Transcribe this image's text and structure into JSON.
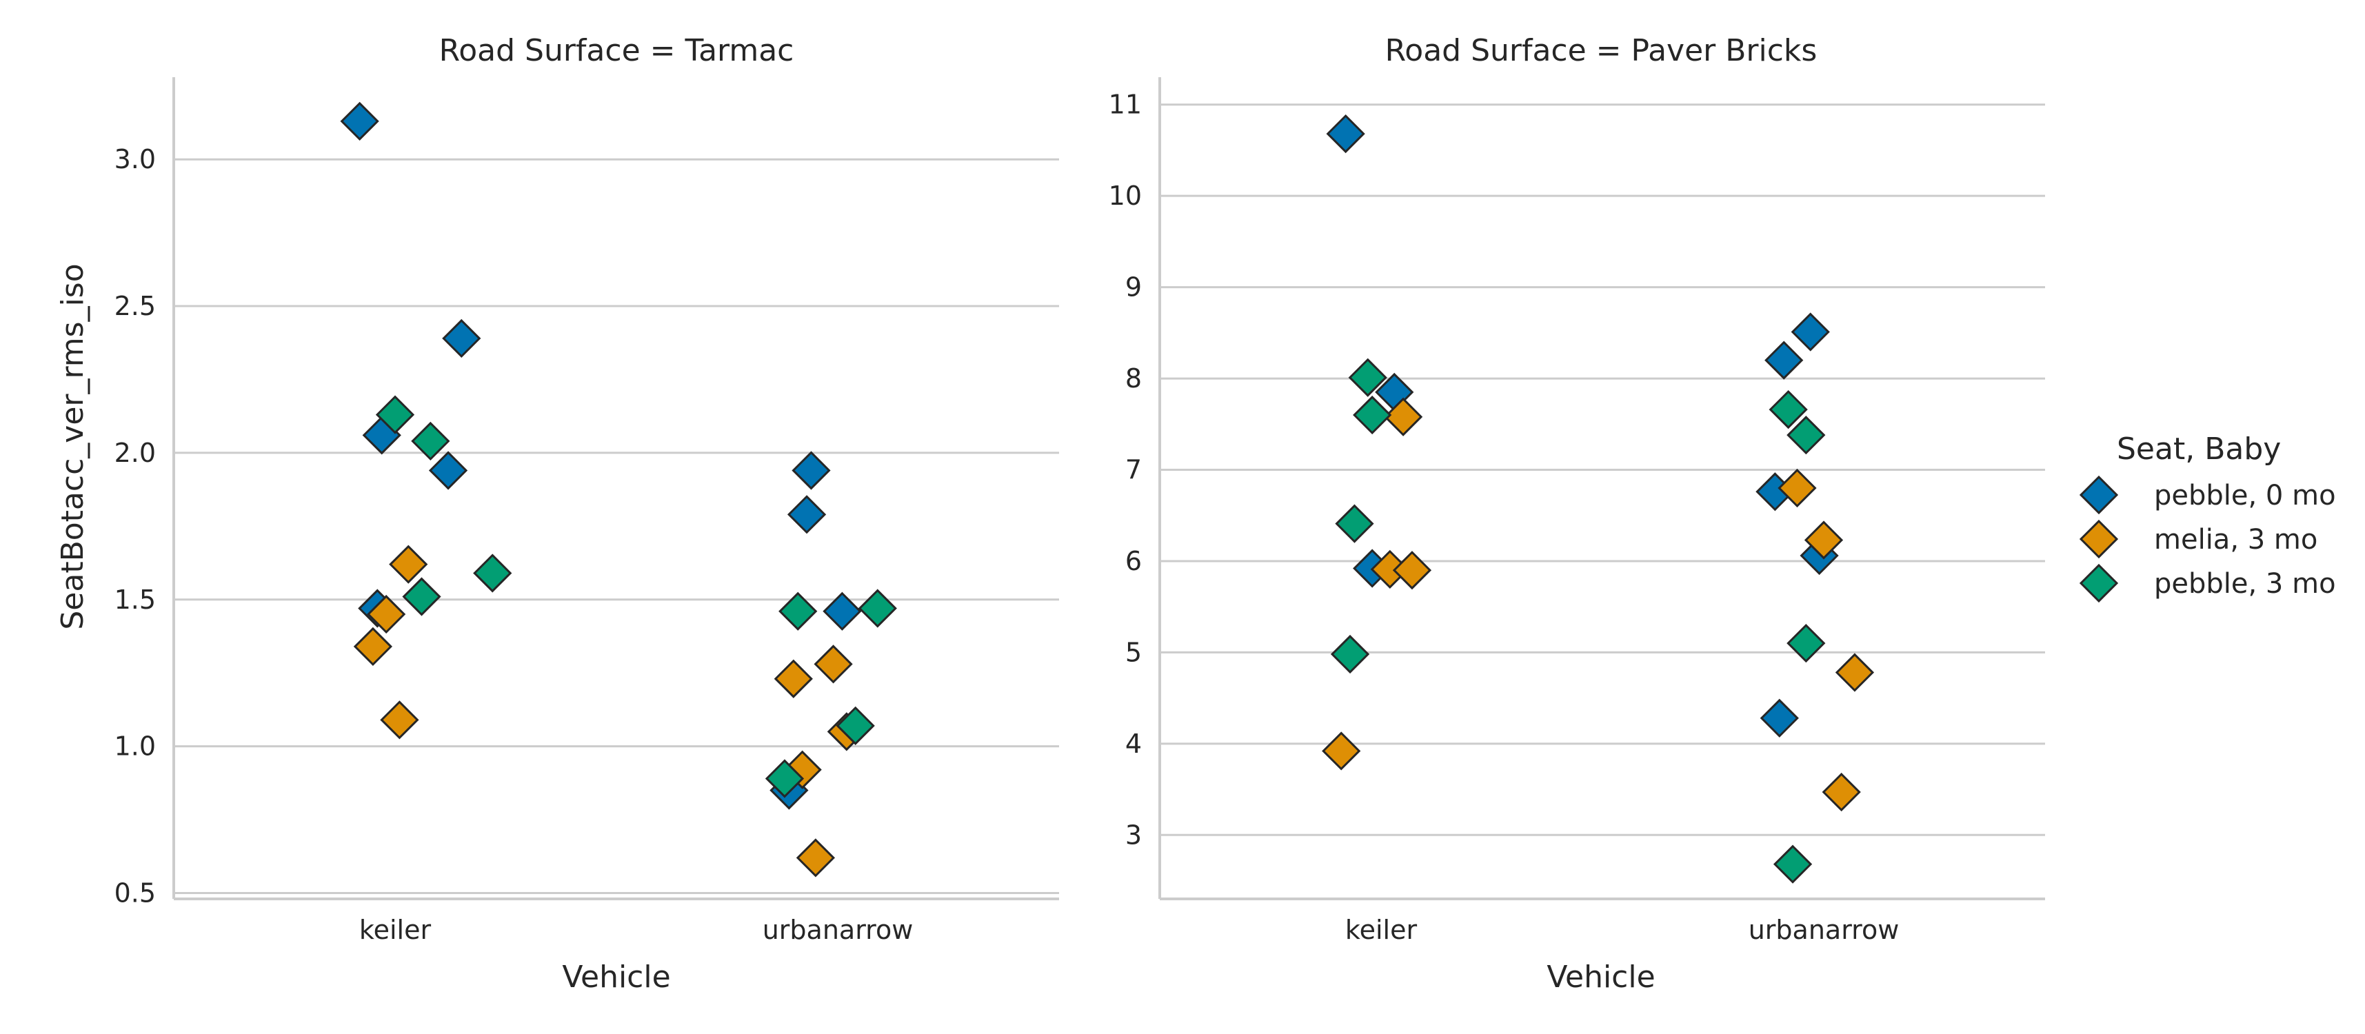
{
  "chart_data": [
    {
      "type": "scatter",
      "title": "Road Surface = Tarmac",
      "xlabel": "Vehicle",
      "ylabel": "SeatBotacc_ver_rms_iso",
      "categories": [
        "keiler",
        "urbanarrow"
      ],
      "ylim": [
        0.48,
        3.28
      ],
      "yticks": [
        "0.5",
        "1.0",
        "1.5",
        "2.0",
        "2.5",
        "3.0"
      ],
      "grid": true,
      "series": [
        {
          "name": "pebble, 0 mo",
          "color": "#0173b2",
          "points": [
            {
              "category": "keiler",
              "jitter": 0.92,
              "y": 3.13
            },
            {
              "category": "keiler",
              "jitter": 1.15,
              "y": 2.39
            },
            {
              "category": "keiler",
              "jitter": 0.97,
              "y": 2.06
            },
            {
              "category": "keiler",
              "jitter": 1.12,
              "y": 1.94
            },
            {
              "category": "keiler",
              "jitter": 0.96,
              "y": 1.47
            },
            {
              "category": "urbanarrow",
              "jitter": 1.94,
              "y": 1.94
            },
            {
              "category": "urbanarrow",
              "jitter": 1.93,
              "y": 1.79
            },
            {
              "category": "urbanarrow",
              "jitter": 2.01,
              "y": 1.46
            },
            {
              "category": "urbanarrow",
              "jitter": 1.89,
              "y": 0.85
            }
          ]
        },
        {
          "name": "melia, 3 mo",
          "color": "#de8f05",
          "points": [
            {
              "category": "keiler",
              "jitter": 1.03,
              "y": 1.62
            },
            {
              "category": "keiler",
              "jitter": 0.98,
              "y": 1.45
            },
            {
              "category": "keiler",
              "jitter": 0.95,
              "y": 1.34
            },
            {
              "category": "keiler",
              "jitter": 1.01,
              "y": 1.09
            },
            {
              "category": "urbanarrow",
              "jitter": 1.99,
              "y": 1.28
            },
            {
              "category": "urbanarrow",
              "jitter": 1.9,
              "y": 1.23
            },
            {
              "category": "urbanarrow",
              "jitter": 2.02,
              "y": 1.05
            },
            {
              "category": "urbanarrow",
              "jitter": 1.92,
              "y": 0.92
            },
            {
              "category": "urbanarrow",
              "jitter": 1.95,
              "y": 0.62
            }
          ]
        },
        {
          "name": "pebble, 3 mo",
          "color": "#029e73",
          "points": [
            {
              "category": "keiler",
              "jitter": 1.0,
              "y": 2.13
            },
            {
              "category": "keiler",
              "jitter": 1.08,
              "y": 2.04
            },
            {
              "category": "keiler",
              "jitter": 1.22,
              "y": 1.59
            },
            {
              "category": "keiler",
              "jitter": 1.06,
              "y": 1.51
            },
            {
              "category": "urbanarrow",
              "jitter": 1.91,
              "y": 1.46
            },
            {
              "category": "urbanarrow",
              "jitter": 2.09,
              "y": 1.47
            },
            {
              "category": "urbanarrow",
              "jitter": 2.04,
              "y": 1.07
            },
            {
              "category": "urbanarrow",
              "jitter": 1.88,
              "y": 0.89
            }
          ]
        }
      ]
    },
    {
      "type": "scatter",
      "title": "Road Surface = Paver Bricks",
      "xlabel": "Vehicle",
      "ylabel": "",
      "categories": [
        "keiler",
        "urbanarrow"
      ],
      "ylim": [
        2.3,
        11.3
      ],
      "yticks": [
        "3",
        "4",
        "5",
        "6",
        "7",
        "8",
        "9",
        "10",
        "11"
      ],
      "grid": true,
      "series": [
        {
          "name": "pebble, 0 mo",
          "color": "#0173b2",
          "points": [
            {
              "category": "keiler",
              "jitter": 0.92,
              "y": 10.68
            },
            {
              "category": "keiler",
              "jitter": 1.03,
              "y": 7.85
            },
            {
              "category": "keiler",
              "jitter": 0.98,
              "y": 5.92
            },
            {
              "category": "urbanarrow",
              "jitter": 1.97,
              "y": 8.51
            },
            {
              "category": "urbanarrow",
              "jitter": 1.91,
              "y": 8.2
            },
            {
              "category": "urbanarrow",
              "jitter": 1.89,
              "y": 6.76
            },
            {
              "category": "urbanarrow",
              "jitter": 1.99,
              "y": 6.06
            },
            {
              "category": "urbanarrow",
              "jitter": 1.9,
              "y": 4.28
            }
          ]
        },
        {
          "name": "melia, 3 mo",
          "color": "#de8f05",
          "points": [
            {
              "category": "keiler",
              "jitter": 1.05,
              "y": 7.58
            },
            {
              "category": "keiler",
              "jitter": 1.02,
              "y": 5.91
            },
            {
              "category": "keiler",
              "jitter": 1.07,
              "y": 5.9
            },
            {
              "category": "keiler",
              "jitter": 0.91,
              "y": 3.92
            },
            {
              "category": "urbanarrow",
              "jitter": 1.94,
              "y": 6.8
            },
            {
              "category": "urbanarrow",
              "jitter": 2.0,
              "y": 6.23
            },
            {
              "category": "urbanarrow",
              "jitter": 2.07,
              "y": 4.78
            },
            {
              "category": "urbanarrow",
              "jitter": 2.04,
              "y": 3.47
            }
          ]
        },
        {
          "name": "pebble, 3 mo",
          "color": "#029e73",
          "points": [
            {
              "category": "keiler",
              "jitter": 0.97,
              "y": 8.01
            },
            {
              "category": "keiler",
              "jitter": 0.98,
              "y": 7.6
            },
            {
              "category": "keiler",
              "jitter": 0.94,
              "y": 6.41
            },
            {
              "category": "keiler",
              "jitter": 0.93,
              "y": 4.98
            },
            {
              "category": "urbanarrow",
              "jitter": 1.92,
              "y": 7.66
            },
            {
              "category": "urbanarrow",
              "jitter": 1.96,
              "y": 7.38
            },
            {
              "category": "urbanarrow",
              "jitter": 1.96,
              "y": 5.1
            },
            {
              "category": "urbanarrow",
              "jitter": 1.93,
              "y": 2.68
            }
          ]
        }
      ]
    }
  ],
  "legend": {
    "title": "Seat, Baby",
    "placement": "right",
    "items": [
      {
        "label": "pebble, 0 mo",
        "color": "#0173b2",
        "icon": "diamond-icon"
      },
      {
        "label": "melia, 3 mo",
        "color": "#de8f05",
        "icon": "diamond-icon"
      },
      {
        "label": "pebble, 3 mo",
        "color": "#029e73",
        "icon": "diamond-icon"
      }
    ]
  }
}
